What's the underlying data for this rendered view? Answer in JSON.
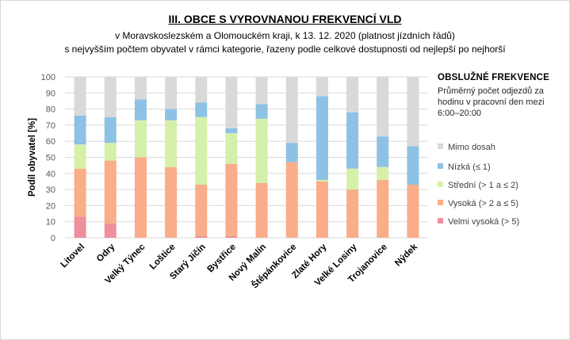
{
  "header": {
    "title": "III. OBCE S VYROVNANOU FREKVENCÍ VLD",
    "subtitle1": "v Moravskoslezském a Olomouckém kraji, k 13. 12. 2020 (platnost jízdních řádů)",
    "subtitle2": "s nejvyšším počtem  obyvatel v rámci kategorie, řazeny podle celkové dostupnosti od nejlepší po nejhorší"
  },
  "legend": {
    "title": "OBSLUŽNÉ  FREKVENCE",
    "subtitle": "Průměrný počet odjezdů za hodinu v pracovní den mezi 6:00–20:00"
  },
  "colors": {
    "mimo": "#d9d9d9",
    "nizka": "#8dc2e4",
    "stredni": "#d5f0a9",
    "vysoka": "#f9ad88",
    "velmi": "#ef8f9e",
    "grid": "#d9d9d9",
    "axis_text": "#595959"
  },
  "chart_data": {
    "type": "bar",
    "stacked": true,
    "categories": [
      "Litovel",
      "Odry",
      "Velký Týnec",
      "Loštice",
      "Starý Jičín",
      "Bystřice",
      "Nový Malín",
      "Štěpánkovice",
      "Zlaté Hory",
      "Velké Losiny",
      "Trojanovice",
      "Nýdek"
    ],
    "series": [
      {
        "name": "Velmi vysoká (> 5)",
        "color": "#ef8f9e",
        "values": [
          13,
          9,
          0,
          0,
          1,
          1,
          0,
          0,
          0,
          0,
          0,
          0
        ]
      },
      {
        "name": "Vysoká (> 2 a ≤ 5)",
        "color": "#f9ad88",
        "values": [
          30,
          39,
          50,
          44,
          32,
          45,
          34,
          47,
          35,
          30,
          36,
          33
        ]
      },
      {
        "name": "Střední (> 1 a ≤ 2)",
        "color": "#d5f0a9",
        "values": [
          15,
          11,
          23,
          29,
          42,
          19,
          40,
          0,
          1,
          13,
          8,
          0
        ]
      },
      {
        "name": "Nízká (≤ 1)",
        "color": "#8dc2e4",
        "values": [
          18,
          16,
          13,
          7,
          9,
          3,
          9,
          12,
          52,
          35,
          19,
          24
        ]
      },
      {
        "name": "Mimo dosah",
        "color": "#d9d9d9",
        "values": [
          24,
          25,
          14,
          20,
          16,
          32,
          17,
          41,
          12,
          22,
          37,
          43
        ]
      }
    ],
    "legend_order": [
      "Mimo dosah",
      "Nízká (≤ 1)",
      "Střední (> 1 a ≤ 2)",
      "Vysoká (> 2 a ≤ 5)",
      "Velmi vysoká (> 5)"
    ],
    "ylabel": "Podíl obyvatel [%]",
    "ylim": [
      0,
      100
    ],
    "yticks": [
      0,
      10,
      20,
      30,
      40,
      50,
      60,
      70,
      80,
      90,
      100
    ],
    "grid": true,
    "legend_position": "right"
  }
}
